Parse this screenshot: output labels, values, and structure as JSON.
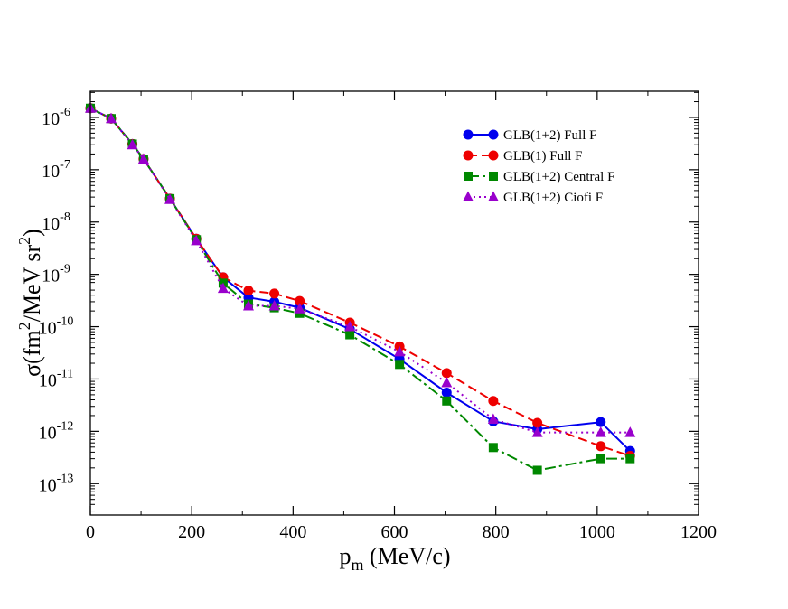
{
  "chart_data": {
    "type": "line",
    "xlabel": "p",
    "xlabel_sub": "m",
    "xlabel_unit": " (MeV/c)",
    "ylabel_parts": [
      "σ(fm",
      "2",
      "/MeV sr",
      "2",
      ")"
    ],
    "xlim": [
      0,
      1200
    ],
    "ylim_log10": [
      -13.6,
      -5.5
    ],
    "y_scale": "log",
    "x_ticks": [
      0,
      200,
      400,
      600,
      800,
      1000,
      1200
    ],
    "y_tick_exponents": [
      -6,
      -7,
      -8,
      -9,
      -10,
      -11,
      -12,
      -13
    ],
    "y_tick_base": "10",
    "grid": false,
    "legend_position": "top-right",
    "series": [
      {
        "name": "GLB(1+2) Full F",
        "color": "#0000ee",
        "dash": "solid",
        "marker": "circle",
        "points": [
          [
            0,
            1.5e-06
          ],
          [
            41,
            9.5e-07
          ],
          [
            83,
            3.1e-07
          ],
          [
            105,
            1.6e-07
          ],
          [
            157,
            2.8e-08
          ],
          [
            209,
            4.8e-09
          ],
          [
            262,
            8.8e-10
          ],
          [
            312,
            3.6e-10
          ],
          [
            363,
            3e-10
          ],
          [
            413,
            2.3e-10
          ],
          [
            512,
            9e-11
          ],
          [
            610,
            2.4e-11
          ],
          [
            703,
            5.5e-12
          ],
          [
            795,
            1.55e-12
          ],
          [
            882,
            1.1e-12
          ],
          [
            1007,
            1.5e-12
          ],
          [
            1065,
            4.2e-13
          ]
        ]
      },
      {
        "name": "GLB(1) Full F",
        "color": "#ee0000",
        "dash": "long",
        "marker": "circle",
        "points": [
          [
            0,
            1.5e-06
          ],
          [
            41,
            9.5e-07
          ],
          [
            83,
            3.1e-07
          ],
          [
            105,
            1.6e-07
          ],
          [
            157,
            2.8e-08
          ],
          [
            209,
            4.8e-09
          ],
          [
            262,
            8.8e-10
          ],
          [
            312,
            4.9e-10
          ],
          [
            363,
            4.3e-10
          ],
          [
            413,
            3.1e-10
          ],
          [
            512,
            1.2e-10
          ],
          [
            610,
            4.2e-11
          ],
          [
            703,
            1.3e-11
          ],
          [
            795,
            3.8e-12
          ],
          [
            882,
            1.45e-12
          ],
          [
            1007,
            5.2e-13
          ],
          [
            1065,
            3.4e-13
          ]
        ]
      },
      {
        "name": "GLB(1+2) Central F",
        "color": "#008800",
        "dash": "dashdot",
        "marker": "square",
        "points": [
          [
            0,
            1.5e-06
          ],
          [
            41,
            9.5e-07
          ],
          [
            83,
            3.1e-07
          ],
          [
            105,
            1.6e-07
          ],
          [
            157,
            2.8e-08
          ],
          [
            209,
            4.6e-09
          ],
          [
            262,
            6.8e-10
          ],
          [
            312,
            2.7e-10
          ],
          [
            363,
            2.3e-10
          ],
          [
            413,
            1.8e-10
          ],
          [
            512,
            7e-11
          ],
          [
            610,
            1.9e-11
          ],
          [
            703,
            3.8e-12
          ],
          [
            795,
            4.9e-13
          ],
          [
            882,
            1.8e-13
          ],
          [
            1007,
            3e-13
          ],
          [
            1065,
            3e-13
          ]
        ]
      },
      {
        "name": "GLB(1+2) Ciofi F",
        "color": "#9900cc",
        "dash": "dotted",
        "marker": "triangle",
        "points": [
          [
            0,
            1.5e-06
          ],
          [
            41,
            9.5e-07
          ],
          [
            83,
            3e-07
          ],
          [
            105,
            1.6e-07
          ],
          [
            157,
            2.7e-08
          ],
          [
            209,
            4.4e-09
          ],
          [
            262,
            5.4e-10
          ],
          [
            312,
            2.5e-10
          ],
          [
            363,
            2.5e-10
          ],
          [
            413,
            2.2e-10
          ],
          [
            512,
            1e-10
          ],
          [
            610,
            3.3e-11
          ],
          [
            703,
            8.5e-12
          ],
          [
            795,
            1.7e-12
          ],
          [
            882,
            9.5e-13
          ],
          [
            1007,
            9.5e-13
          ],
          [
            1065,
            9.5e-13
          ]
        ]
      }
    ]
  }
}
